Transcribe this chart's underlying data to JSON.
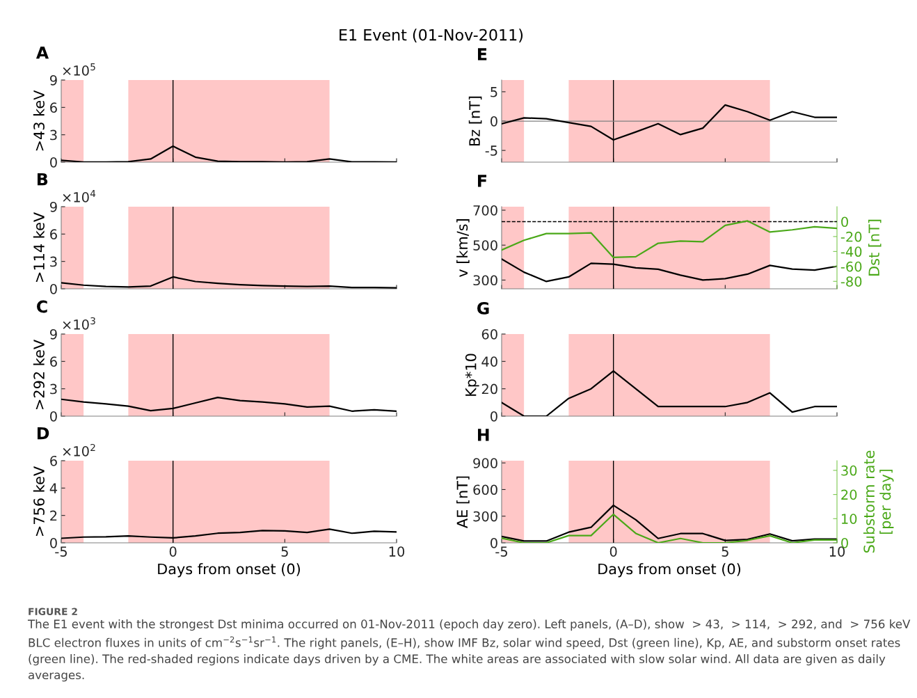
{
  "chart_data": [
    {
      "type": "line",
      "title": "A",
      "ylabel": ">43 keV",
      "annotations": [
        "×10$^{5}$",
        "E1 Event (01-Nov-2011)"
      ],
      "x": [
        -5,
        -4,
        -3,
        -2,
        -1,
        0,
        1,
        2,
        3,
        4,
        5,
        6,
        7,
        8,
        9,
        10
      ],
      "xlim": [
        -5,
        10
      ],
      "xticks": [
        -5,
        0,
        5,
        10
      ],
      "ylim": [
        0,
        9
      ],
      "yticks": [
        0,
        3,
        6,
        9
      ],
      "tick_labels": "y",
      "series": [
        {
          "color": "#000000",
          "values": [
            0.2,
            0.02,
            0.02,
            0.05,
            0.35,
            1.75,
            0.55,
            0.1,
            0.05,
            0.05,
            0.02,
            0.05,
            0.35,
            0.03,
            0.03,
            0.02
          ]
        }
      ],
      "bands": [
        {
          "axis": "x",
          "from": -5,
          "to": -4,
          "color": "#ffc7c7"
        },
        {
          "axis": "x",
          "from": -2,
          "to": 7,
          "color": "#ffc7c7"
        }
      ],
      "ref_lines": [
        {
          "axis": "x",
          "value": 0,
          "color": "#000000"
        }
      ]
    },
    {
      "type": "line",
      "title": "B",
      "ylabel": ">114 keV",
      "annotations": [
        "×10$^{4}$"
      ],
      "x": [
        -5,
        -4,
        -3,
        -2,
        -1,
        0,
        1,
        2,
        3,
        4,
        5,
        6,
        7,
        8,
        9,
        10
      ],
      "xlim": [
        -5,
        10
      ],
      "xticks": [
        -5,
        0,
        5,
        10
      ],
      "ylim": [
        0,
        9
      ],
      "yticks": [
        0,
        3,
        6,
        9
      ],
      "tick_labels": "y",
      "series": [
        {
          "color": "#000000",
          "values": [
            0.65,
            0.4,
            0.25,
            0.2,
            0.3,
            1.3,
            0.8,
            0.6,
            0.45,
            0.35,
            0.3,
            0.25,
            0.3,
            0.15,
            0.15,
            0.1
          ]
        }
      ],
      "bands": [
        {
          "axis": "x",
          "from": -5,
          "to": -4,
          "color": "#ffc7c7"
        },
        {
          "axis": "x",
          "from": -2,
          "to": 7,
          "color": "#ffc7c7"
        }
      ],
      "ref_lines": [
        {
          "axis": "x",
          "value": 0,
          "color": "#000000"
        }
      ]
    },
    {
      "type": "line",
      "title": "C",
      "ylabel": ">292 keV",
      "annotations": [
        "×10$^{3}$"
      ],
      "x": [
        -5,
        -4,
        -3,
        -2,
        -1,
        0,
        1,
        2,
        3,
        4,
        5,
        6,
        7,
        8,
        9,
        10
      ],
      "xlim": [
        -5,
        10
      ],
      "xticks": [
        -5,
        0,
        5,
        10
      ],
      "ylim": [
        0,
        9
      ],
      "yticks": [
        0,
        3,
        6,
        9
      ],
      "tick_labels": "y",
      "series": [
        {
          "color": "#000000",
          "values": [
            1.85,
            1.55,
            1.35,
            1.1,
            0.6,
            0.85,
            1.45,
            2.05,
            1.7,
            1.55,
            1.35,
            1.0,
            1.1,
            0.55,
            0.7,
            0.55
          ]
        }
      ],
      "bands": [
        {
          "axis": "x",
          "from": -5,
          "to": -4,
          "color": "#ffc7c7"
        },
        {
          "axis": "x",
          "from": -2,
          "to": 7,
          "color": "#ffc7c7"
        }
      ],
      "ref_lines": [
        {
          "axis": "x",
          "value": 0,
          "color": "#000000"
        }
      ]
    },
    {
      "type": "line",
      "title": "D",
      "ylabel": ">756 keV",
      "xlabel": "Days from onset (0)",
      "annotations": [
        "×10$^{2}$",
        "FIGURE 2",
        "The E1 event with the strongest Dst minima occurred on 01-Nov-2011 (epoch day zero). Left panels, (A–D), show  > 43,  > 114,  > 292, and  > 756 keV BLC electron fluxes in units of cm$^{−2}$s$^{−1}$sr$^{−1}$. The right panels, (E–H), show IMF Bz, solar wind speed, Dst (green line), Kp, AE, and substorm onset rates (green line). The red-shaded regions indicate days driven by a CME. The white areas are associated with slow solar wind. All data are given as daily averages."
      ],
      "x": [
        -5,
        -4,
        -3,
        -2,
        -1,
        0,
        1,
        2,
        3,
        4,
        5,
        6,
        7,
        8,
        9,
        10
      ],
      "xlim": [
        -5,
        10
      ],
      "xticks": [
        -5,
        0,
        5,
        10
      ],
      "ylim": [
        0,
        6
      ],
      "yticks": [
        0,
        2,
        4,
        6
      ],
      "series": [
        {
          "color": "#000000",
          "values": [
            0.33,
            0.42,
            0.44,
            0.5,
            0.42,
            0.36,
            0.5,
            0.7,
            0.76,
            0.9,
            0.87,
            0.76,
            1.0,
            0.7,
            0.84,
            0.8
          ]
        }
      ],
      "bands": [
        {
          "axis": "x",
          "from": -5,
          "to": -4,
          "color": "#ffc7c7"
        },
        {
          "axis": "x",
          "from": -2,
          "to": 7,
          "color": "#ffc7c7"
        }
      ],
      "ref_lines": [
        {
          "axis": "x",
          "value": 0,
          "color": "#000000"
        }
      ]
    },
    {
      "type": "line",
      "title": "E",
      "ylabel": "Bz [nT]",
      "x": [
        -5,
        -4,
        -3,
        -2,
        -1,
        0,
        1,
        2,
        3,
        4,
        5,
        6,
        7,
        8,
        9,
        10
      ],
      "xlim": [
        -5,
        10
      ],
      "xticks": [
        -5,
        0,
        5,
        10
      ],
      "ylim": [
        -7,
        7
      ],
      "yticks": [
        -5,
        0,
        5
      ],
      "tick_labels": "y",
      "series": [
        {
          "color": "#000000",
          "values": [
            -0.45,
            0.55,
            0.4,
            -0.25,
            -0.9,
            -3.2,
            -1.85,
            -0.45,
            -2.3,
            -1.2,
            2.75,
            1.6,
            0.15,
            1.6,
            0.65,
            0.65
          ]
        }
      ],
      "bands": [
        {
          "axis": "x",
          "from": -5,
          "to": -4,
          "color": "#ffc7c7"
        },
        {
          "axis": "x",
          "from": -2,
          "to": 7,
          "color": "#ffc7c7"
        }
      ],
      "ref_lines": [
        {
          "axis": "x",
          "value": 0,
          "color": "#000000"
        },
        {
          "axis": "y",
          "value": 0,
          "color": "#808080"
        }
      ]
    },
    {
      "type": "line",
      "title": "F",
      "ylabel": "v [km/s]",
      "y2label": "Dst [nT]",
      "x": [
        -5,
        -4,
        -3,
        -2,
        -1,
        0,
        1,
        2,
        3,
        4,
        5,
        6,
        7,
        8,
        9,
        10
      ],
      "xlim": [
        -5,
        10
      ],
      "xticks": [
        -5,
        0,
        5,
        10
      ],
      "ylim": [
        250,
        720
      ],
      "yticks": [
        300,
        500,
        700
      ],
      "y2lim": [
        -90,
        20
      ],
      "y2ticks": [
        -80,
        -60,
        -40,
        -20,
        0
      ],
      "tick_labels": "y",
      "series": [
        {
          "color": "#000000",
          "values": [
            420,
            345,
            292,
            318,
            396,
            391,
            370,
            362,
            328,
            300,
            308,
            334,
            384,
            363,
            357,
            379
          ]
        },
        {
          "color": "#4aa818",
          "axis": "y2",
          "values": [
            -38,
            -25,
            -16,
            -16,
            -15,
            -48,
            -47,
            -29,
            -26,
            -27,
            -5,
            1,
            -14,
            -11,
            -7,
            -9
          ]
        }
      ],
      "bands": [
        {
          "axis": "x",
          "from": -5,
          "to": -4,
          "color": "#ffc7c7"
        },
        {
          "axis": "x",
          "from": -2,
          "to": 7,
          "color": "#ffc7c7"
        }
      ],
      "ref_lines": [
        {
          "axis": "x",
          "value": 0,
          "color": "#000000"
        },
        {
          "axis": "y2",
          "value": 0,
          "color": "#000000",
          "line_style": "dashed"
        }
      ]
    },
    {
      "type": "line",
      "title": "G",
      "ylabel": "Kp*10",
      "x": [
        -5,
        -4,
        -3,
        -2,
        -1,
        0,
        1,
        2,
        3,
        4,
        5,
        6,
        7,
        8,
        9,
        10
      ],
      "xlim": [
        -5,
        10
      ],
      "xticks": [
        -5,
        0,
        5,
        10
      ],
      "ylim": [
        0,
        60
      ],
      "yticks": [
        0,
        20,
        40,
        60
      ],
      "tick_labels": "y",
      "series": [
        {
          "color": "#000000",
          "values": [
            10,
            0,
            0,
            13,
            20,
            33,
            20,
            7,
            7,
            7,
            7,
            10,
            17,
            3,
            7,
            7
          ]
        }
      ],
      "bands": [
        {
          "axis": "x",
          "from": -5,
          "to": -4,
          "color": "#ffc7c7"
        },
        {
          "axis": "x",
          "from": -2,
          "to": 7,
          "color": "#ffc7c7"
        }
      ],
      "ref_lines": [
        {
          "axis": "x",
          "value": 0,
          "color": "#000000"
        }
      ]
    },
    {
      "type": "line",
      "title": "H",
      "ylabel": "AE [nT]",
      "y2label": "Substorm rate\n[per day]",
      "xlabel": "Days from onset (0)",
      "x": [
        -5,
        -4,
        -3,
        -2,
        -1,
        0,
        1,
        2,
        3,
        4,
        5,
        6,
        7,
        8,
        9,
        10
      ],
      "xlim": [
        -5,
        10
      ],
      "xticks": [
        -5,
        0,
        5,
        10
      ],
      "ylim": [
        0,
        925
      ],
      "yticks": [
        0,
        300,
        600,
        900
      ],
      "y2lim": [
        0,
        34
      ],
      "y2ticks": [
        0,
        10,
        20,
        30
      ],
      "series": [
        {
          "color": "#000000",
          "values": [
            71,
            20,
            20,
            120,
            175,
            422,
            260,
            49,
            104,
            104,
            26,
            39,
            100,
            23,
            42,
            42
          ]
        },
        {
          "color": "#4aa818",
          "axis": "y2",
          "values": [
            1.9,
            0,
            0,
            3,
            3,
            11.8,
            3.9,
            0,
            1.8,
            0,
            0,
            1,
            2.9,
            0,
            1.2,
            1.2
          ]
        }
      ],
      "bands": [
        {
          "axis": "x",
          "from": -5,
          "to": -4,
          "color": "#ffc7c7"
        },
        {
          "axis": "x",
          "from": -2,
          "to": 7,
          "color": "#ffc7c7"
        }
      ],
      "ref_lines": [
        {
          "axis": "x",
          "value": 0,
          "color": "#000000"
        }
      ]
    }
  ]
}
